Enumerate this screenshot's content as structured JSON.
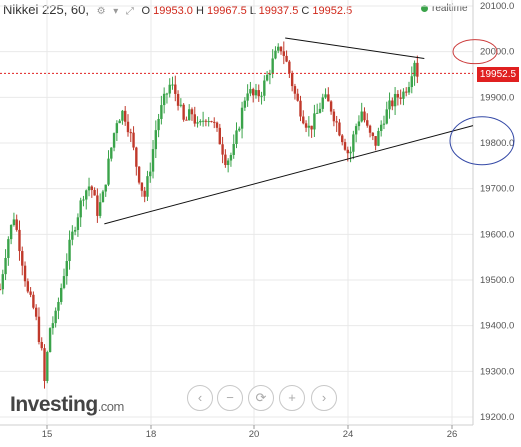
{
  "header": {
    "symbol": "Nikkei 225, 60,",
    "o_key": "O",
    "o_val": "19953.0",
    "h_key": "H",
    "h_val": "19967.5",
    "l_key": "L",
    "l_val": "19937.5",
    "c_key": "C",
    "c_val": "19952.5",
    "realtime": "realtime"
  },
  "last_price": "19952.5",
  "logo": {
    "brand": "Investing",
    "domain": ".com"
  },
  "controls": [
    "‹",
    "−",
    "⟳",
    "+",
    "›"
  ],
  "colors": {
    "up": "#3aa34a",
    "down": "#c0392b",
    "last": "#e02020",
    "grid": "#e9e9e9",
    "ellipse_red": "#cc3b3b",
    "ellipse_blue": "#3348a6"
  },
  "chart_data": {
    "type": "candlestick",
    "x_ticks": [
      "15",
      "18",
      "20",
      "24",
      "26"
    ],
    "y_ticks": [
      "20100.0",
      "20000.0",
      "19900.0",
      "19800.0",
      "19700.0",
      "19600.0",
      "19500.0",
      "19400.0",
      "19300.0",
      "19200.0"
    ],
    "ylim": [
      19190,
      20110
    ],
    "grid": true,
    "last": 19952.5,
    "path_points": [
      [
        0.0,
        19480
      ],
      [
        0.4,
        19580
      ],
      [
        0.8,
        19640
      ],
      [
        1.2,
        19560
      ],
      [
        1.6,
        19470
      ],
      [
        2.0,
        19430
      ],
      [
        2.4,
        19340
      ],
      [
        2.6,
        19260
      ],
      [
        2.8,
        19390
      ],
      [
        3.2,
        19420
      ],
      [
        3.5,
        19480
      ],
      [
        3.9,
        19560
      ],
      [
        4.3,
        19620
      ],
      [
        4.8,
        19690
      ],
      [
        5.2,
        19710
      ],
      [
        5.6,
        19650
      ],
      [
        5.9,
        19680
      ],
      [
        6.3,
        19770
      ],
      [
        6.7,
        19850
      ],
      [
        7.1,
        19870
      ],
      [
        7.5,
        19820
      ],
      [
        7.9,
        19740
      ],
      [
        8.3,
        19680
      ],
      [
        8.7,
        19760
      ],
      [
        9.0,
        19840
      ],
      [
        9.4,
        19890
      ],
      [
        9.8,
        19930
      ],
      [
        10.2,
        19900
      ],
      [
        10.6,
        19840
      ],
      [
        11.0,
        19870
      ],
      [
        11.4,
        19830
      ],
      [
        11.8,
        19860
      ],
      [
        12.2,
        19850
      ],
      [
        12.6,
        19810
      ],
      [
        13.0,
        19760
      ],
      [
        13.4,
        19780
      ],
      [
        13.8,
        19850
      ],
      [
        14.2,
        19920
      ],
      [
        14.6,
        19900
      ],
      [
        15.0,
        19910
      ],
      [
        15.4,
        19950
      ],
      [
        15.8,
        19990
      ],
      [
        16.2,
        20010
      ],
      [
        16.6,
        19960
      ],
      [
        17.0,
        19900
      ],
      [
        17.4,
        19860
      ],
      [
        17.8,
        19830
      ],
      [
        18.2,
        19860
      ],
      [
        18.6,
        19900
      ],
      [
        19.0,
        19880
      ],
      [
        19.4,
        19840
      ],
      [
        19.8,
        19800
      ],
      [
        20.1,
        19770
      ],
      [
        20.4,
        19830
      ],
      [
        20.8,
        19870
      ],
      [
        21.2,
        19820
      ],
      [
        21.6,
        19800
      ],
      [
        22.0,
        19850
      ],
      [
        22.4,
        19880
      ],
      [
        22.8,
        19900
      ],
      [
        23.2,
        19910
      ],
      [
        23.6,
        19940
      ],
      [
        23.8,
        19990
      ],
      [
        24.0,
        19952.5
      ]
    ],
    "trendlines": [
      {
        "name": "resistance",
        "from": [
          16.4,
          20030
        ],
        "to": [
          24.4,
          19985
        ]
      },
      {
        "name": "support",
        "from": [
          6.0,
          19623
        ],
        "to": [
          27.2,
          19838
        ]
      }
    ],
    "annotations": [
      {
        "shape": "ellipse",
        "center": [
          24.2,
          20000
        ],
        "color": "red"
      },
      {
        "shape": "ellipse",
        "center": [
          24.2,
          19805
        ],
        "color": "blue"
      }
    ]
  }
}
